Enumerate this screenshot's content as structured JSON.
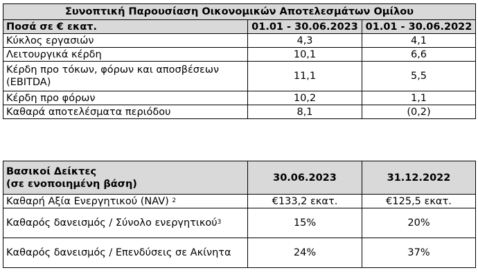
{
  "table1": {
    "title": "Συνοπτική Παρουσίαση Οικονομικών Αποτελεσμάτων Ομίλου",
    "headers": [
      "Ποσά σε € εκατ.",
      "01.01 - 30.06.2023",
      "01.01 - 30.06.2022"
    ],
    "rows": [
      [
        "Κύκλος εργασιών",
        "4,3",
        "4,1"
      ],
      [
        "Λειτουργικά κέρδη",
        "10,1",
        "6,6"
      ],
      [
        "Κέρδη προ τόκων, φόρων και αποσβέσεων (EBITDA)",
        "11,1",
        "5,5"
      ],
      [
        "Κέρδη προ φόρων",
        "10,2",
        "1,1"
      ],
      [
        "Καθαρά αποτελέσματα περιόδου",
        "8,1",
        "(0,2)"
      ]
    ]
  },
  "table2": {
    "header_line1": "Βασικοί Δείκτες",
    "header_line2": "(σε ενοποιημένη βάση)",
    "col_headers": [
      "30.06.2023",
      "31.12.2022"
    ],
    "rows": [
      {
        "label": "Καθαρή Αξία Ενεργητικού (NAV)",
        "sup": "2",
        "values": [
          "€133,2 εκατ.",
          "€125,5 εκατ."
        ]
      },
      {
        "label": "Καθαρός δανεισμός / Σύνολο ενεργητικού",
        "sup": "3",
        "values": [
          "15%",
          "20%"
        ]
      },
      {
        "label": "Καθαρός δανεισμός / Επενδύσεις σε Ακίνητα",
        "sup": "",
        "values": [
          "24%",
          "37%"
        ]
      }
    ]
  }
}
